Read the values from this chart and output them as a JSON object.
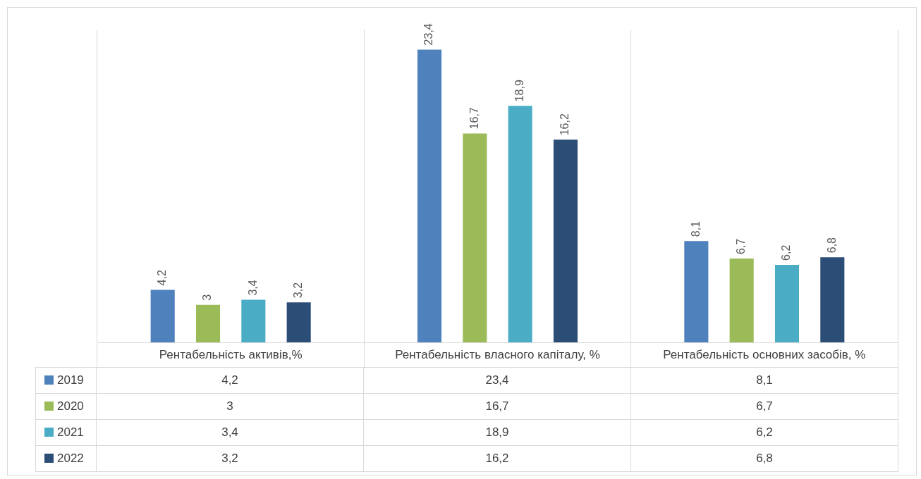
{
  "chart_data": {
    "type": "bar",
    "categories": [
      "Рентабельність активів,%",
      "Рентабельність власного капіталу, %",
      "Рентабельність основних засобів, %"
    ],
    "series": [
      {
        "name": "2019",
        "color": "#4f81bd",
        "values": [
          4.2,
          23.4,
          8.1
        ],
        "value_labels": [
          "4,2",
          "23,4",
          "8,1"
        ]
      },
      {
        "name": "2020",
        "color": "#9bbb59",
        "values": [
          3,
          16.7,
          6.7
        ],
        "value_labels": [
          "3",
          "16,7",
          "6,7"
        ]
      },
      {
        "name": "2021",
        "color": "#4bacc6",
        "values": [
          3.4,
          18.9,
          6.2
        ],
        "value_labels": [
          "3,4",
          "18,9",
          "6,2"
        ]
      },
      {
        "name": "2022",
        "color": "#2c4d75",
        "values": [
          3.2,
          16.2,
          6.8
        ],
        "value_labels": [
          "3,2",
          "16,2",
          "6,8"
        ]
      }
    ],
    "legend": "bottom",
    "grid": "x"
  }
}
